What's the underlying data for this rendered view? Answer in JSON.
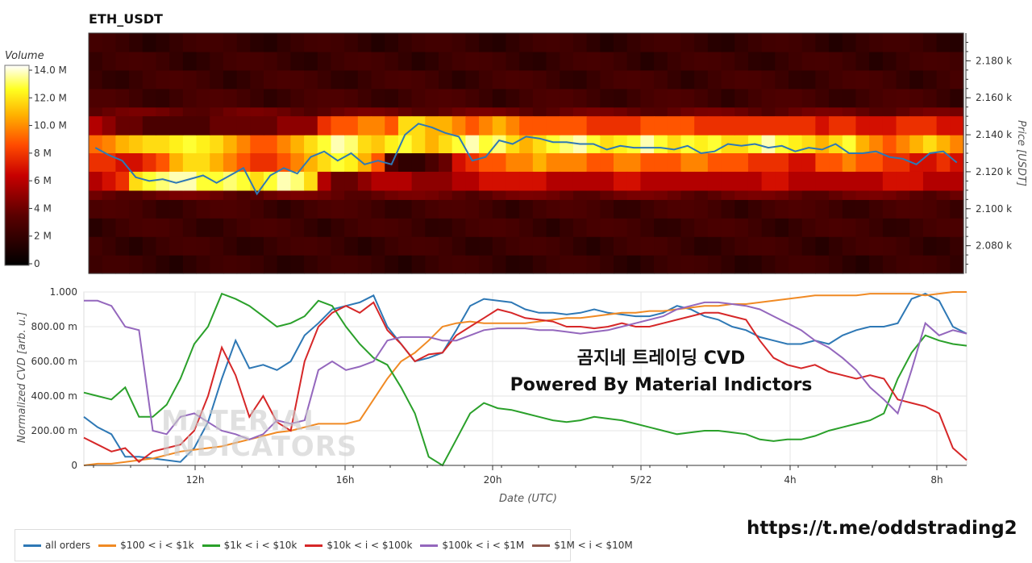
{
  "title": "ETH_USDT",
  "colorbar": {
    "title": "Volume",
    "ticks": [
      "14.0 M",
      "12.0 M",
      "10.0 M",
      "8 M",
      "6 M",
      "4 M",
      "2 M",
      "0"
    ]
  },
  "overlay_lines": [
    "곰지네 트레이딩 CVD",
    "Powered By Material Indictors"
  ],
  "watermark": [
    "MATERIAL",
    "INDICATORS"
  ],
  "link": "https://t.me/oddstrading2",
  "colors": {
    "all_orders": "#2e78b5",
    "b100_1k": "#f08a24",
    "b1k_10k": "#2aa02a",
    "b10k_100k": "#d62728",
    "b100k_1m": "#9467bd",
    "b1m_10m": "#8c564b"
  },
  "chart_data": [
    {
      "type": "heatmap",
      "title": "ETH_USDT",
      "ylabel": "Price [USDT]",
      "yticks": [
        "2.180 k",
        "2.160 k",
        "2.140 k",
        "2.120 k",
        "2.100 k",
        "2.080 k"
      ],
      "ylim": [
        2065,
        2195
      ],
      "colorscale_label": "Volume",
      "zlim": [
        0,
        14.6
      ],
      "price_line": [
        2133,
        2129,
        2126,
        2117,
        2115,
        2116,
        2114,
        2116,
        2118,
        2114,
        2118,
        2122,
        2108,
        2118,
        2122,
        2119,
        2128,
        2131,
        2126,
        2130,
        2124,
        2126,
        2124,
        2140,
        2146,
        2144,
        2141,
        2139,
        2126,
        2128,
        2137,
        2135,
        2139,
        2138,
        2136,
        2136,
        2135,
        2135,
        2132,
        2134,
        2133,
        2133,
        2133,
        2132,
        2134,
        2130,
        2131,
        2135,
        2134,
        2135,
        2133,
        2134,
        2131,
        2133,
        2132,
        2135,
        2130,
        2130,
        2131,
        2128,
        2127,
        2124,
        2130,
        2131,
        2125
      ],
      "bands": [
        {
          "price_low": 2130,
          "price_high": 2140,
          "intensity": [
            9.5,
            10,
            11,
            11.5,
            12,
            12,
            12.5,
            13,
            12.5,
            12,
            11,
            10,
            9,
            9,
            10,
            11,
            12,
            13,
            14,
            13.5,
            12,
            11.5,
            12.5,
            13,
            12,
            11,
            12,
            13,
            14,
            13,
            13.5,
            12,
            11,
            12,
            13,
            13.5,
            14,
            13,
            12,
            12.5,
            13,
            14,
            13,
            12,
            13,
            12.5,
            13,
            12,
            12,
            13,
            14,
            13,
            12.5,
            12,
            11,
            12,
            13,
            11,
            10,
            9,
            10,
            11,
            12,
            11,
            10
          ]
        },
        {
          "price_low": 2120,
          "price_high": 2130,
          "intensity": [
            8,
            8,
            7,
            7,
            8,
            9,
            11,
            12,
            12,
            11,
            10,
            9,
            8,
            8,
            9,
            10,
            11,
            12,
            13,
            12.5,
            11,
            9,
            3,
            2,
            2,
            3,
            4,
            7,
            8,
            9,
            9,
            10,
            10,
            11,
            10,
            10,
            10,
            9,
            9,
            10,
            10,
            9,
            9,
            9,
            10,
            10,
            9,
            9,
            9,
            8,
            8,
            8,
            7,
            7,
            9,
            9,
            10,
            9,
            9,
            8,
            8,
            7,
            7,
            8,
            7
          ]
        },
        {
          "price_low": 2110,
          "price_high": 2120,
          "intensity": [
            6,
            7,
            8,
            12,
            13,
            13.5,
            14,
            14,
            13,
            13,
            13.5,
            13,
            12,
            13,
            14,
            13.5,
            12,
            6,
            4,
            4,
            5,
            6,
            6,
            6,
            5,
            5,
            5,
            6,
            6,
            7,
            7,
            7,
            7,
            7,
            6,
            6,
            6,
            6,
            6,
            7,
            7,
            6,
            6,
            6,
            6,
            6,
            6,
            6,
            6,
            6,
            7,
            7,
            6,
            6,
            6,
            6,
            6,
            6,
            6,
            7,
            7,
            7,
            6,
            6,
            6
          ]
        },
        {
          "price_low": 2140,
          "price_high": 2150,
          "intensity": [
            6,
            5,
            4,
            4,
            3,
            3,
            3,
            3,
            3,
            4,
            4,
            4,
            4,
            4,
            5,
            5,
            5,
            8,
            9,
            9,
            10,
            10,
            9,
            12,
            12,
            11,
            11,
            10,
            9,
            10,
            11,
            10,
            9,
            9,
            9,
            9,
            9,
            8,
            8,
            8,
            8,
            9,
            9,
            9,
            9,
            8,
            8,
            8,
            8,
            8,
            8,
            8,
            8,
            8,
            7,
            8,
            8,
            7,
            7,
            7,
            8,
            8,
            8,
            7,
            7
          ]
        }
      ]
    },
    {
      "type": "line",
      "xlabel": "Date (UTC)",
      "ylabel": "Normalized CVD [arb. u.]",
      "ylim": [
        0,
        1
      ],
      "yticks": [
        "1.000",
        "800.00 m",
        "600.00 m",
        "400.00 m",
        "200.00 m",
        "0"
      ],
      "xticks": [
        "12h",
        "16h",
        "20h",
        "5/22",
        "4h",
        "8h"
      ],
      "series": [
        {
          "name": "all orders",
          "key": "all_orders",
          "values": [
            0.28,
            0.22,
            0.18,
            0.05,
            0.05,
            0.04,
            0.03,
            0.02,
            0.1,
            0.25,
            0.5,
            0.72,
            0.56,
            0.58,
            0.55,
            0.6,
            0.75,
            0.82,
            0.9,
            0.92,
            0.94,
            0.98,
            0.8,
            0.7,
            0.6,
            0.62,
            0.65,
            0.78,
            0.92,
            0.96,
            0.95,
            0.94,
            0.9,
            0.88,
            0.88,
            0.87,
            0.88,
            0.9,
            0.88,
            0.87,
            0.86,
            0.86,
            0.88,
            0.92,
            0.9,
            0.86,
            0.84,
            0.8,
            0.78,
            0.74,
            0.72,
            0.7,
            0.7,
            0.72,
            0.7,
            0.75,
            0.78,
            0.8,
            0.8,
            0.82,
            0.96,
            0.99,
            0.95,
            0.8,
            0.76
          ]
        },
        {
          "name": "$100 < i < $1k",
          "key": "b100_1k",
          "values": [
            0.0,
            0.01,
            0.01,
            0.02,
            0.03,
            0.04,
            0.06,
            0.08,
            0.09,
            0.1,
            0.11,
            0.13,
            0.15,
            0.17,
            0.19,
            0.2,
            0.22,
            0.24,
            0.24,
            0.24,
            0.26,
            0.38,
            0.5,
            0.6,
            0.65,
            0.72,
            0.8,
            0.82,
            0.83,
            0.82,
            0.82,
            0.82,
            0.82,
            0.83,
            0.84,
            0.85,
            0.85,
            0.86,
            0.87,
            0.88,
            0.88,
            0.89,
            0.89,
            0.9,
            0.91,
            0.92,
            0.92,
            0.93,
            0.93,
            0.94,
            0.95,
            0.96,
            0.97,
            0.98,
            0.98,
            0.98,
            0.98,
            0.99,
            0.99,
            0.99,
            0.99,
            0.98,
            0.99,
            1.0,
            1.0
          ]
        },
        {
          "name": "$1k < i < $10k",
          "key": "b1k_10k",
          "values": [
            0.42,
            0.4,
            0.38,
            0.45,
            0.28,
            0.28,
            0.35,
            0.5,
            0.7,
            0.8,
            0.99,
            0.96,
            0.92,
            0.86,
            0.8,
            0.82,
            0.86,
            0.95,
            0.92,
            0.8,
            0.7,
            0.62,
            0.58,
            0.45,
            0.3,
            0.05,
            0.0,
            0.15,
            0.3,
            0.36,
            0.33,
            0.32,
            0.3,
            0.28,
            0.26,
            0.25,
            0.26,
            0.28,
            0.27,
            0.26,
            0.24,
            0.22,
            0.2,
            0.18,
            0.19,
            0.2,
            0.2,
            0.19,
            0.18,
            0.15,
            0.14,
            0.15,
            0.15,
            0.17,
            0.2,
            0.22,
            0.24,
            0.26,
            0.3,
            0.5,
            0.65,
            0.75,
            0.72,
            0.7,
            0.69
          ]
        },
        {
          "name": "$10k < i < $100k",
          "key": "b10k_100k",
          "values": [
            0.16,
            0.12,
            0.08,
            0.1,
            0.02,
            0.08,
            0.1,
            0.12,
            0.2,
            0.4,
            0.68,
            0.52,
            0.28,
            0.4,
            0.25,
            0.2,
            0.6,
            0.8,
            0.88,
            0.92,
            0.88,
            0.94,
            0.78,
            0.7,
            0.6,
            0.64,
            0.65,
            0.75,
            0.8,
            0.85,
            0.9,
            0.88,
            0.85,
            0.84,
            0.83,
            0.8,
            0.8,
            0.79,
            0.8,
            0.82,
            0.8,
            0.8,
            0.82,
            0.84,
            0.86,
            0.88,
            0.88,
            0.86,
            0.84,
            0.72,
            0.62,
            0.58,
            0.56,
            0.58,
            0.54,
            0.52,
            0.5,
            0.52,
            0.5,
            0.38,
            0.36,
            0.34,
            0.3,
            0.1,
            0.03
          ]
        },
        {
          "name": "$100k < i < $1M",
          "key": "b100k_1m",
          "values": [
            0.95,
            0.95,
            0.92,
            0.8,
            0.78,
            0.2,
            0.18,
            0.28,
            0.3,
            0.25,
            0.2,
            0.18,
            0.15,
            0.18,
            0.26,
            0.24,
            0.26,
            0.55,
            0.6,
            0.55,
            0.57,
            0.6,
            0.72,
            0.74,
            0.74,
            0.74,
            0.72,
            0.72,
            0.75,
            0.78,
            0.79,
            0.79,
            0.79,
            0.78,
            0.78,
            0.77,
            0.76,
            0.77,
            0.78,
            0.8,
            0.82,
            0.84,
            0.86,
            0.9,
            0.92,
            0.94,
            0.94,
            0.93,
            0.92,
            0.9,
            0.86,
            0.82,
            0.78,
            0.72,
            0.68,
            0.62,
            0.55,
            0.45,
            0.38,
            0.3,
            0.55,
            0.82,
            0.75,
            0.78,
            0.76
          ]
        },
        {
          "name": "$1M < i < $10M",
          "key": "b1m_10m",
          "values": []
        }
      ]
    }
  ]
}
